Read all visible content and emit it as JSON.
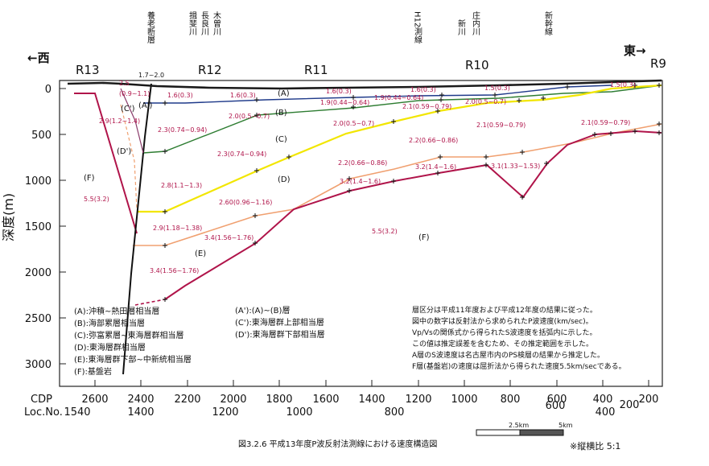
{
  "header": {
    "west": "←西",
    "east": "東→",
    "stations": [
      "R13",
      "R12",
      "R11",
      "R10",
      "R9"
    ],
    "top_labels": [
      "養老断層",
      "揖斐川",
      "長良川",
      "木曽川",
      "H12測線",
      "新川",
      "庄内川",
      "新幹線"
    ],
    "small_values": [
      "1.7~2.0",
      "2.5",
      "(0.9~1.1)"
    ]
  },
  "axis": {
    "ylabel": "深度(m)",
    "yticks": [
      "0",
      "500",
      "1000",
      "1500",
      "2000",
      "2500",
      "3000"
    ],
    "cdp_label": "CDP",
    "loc_label": "Loc.No.",
    "cdp_ticks": [
      "2600",
      "2400",
      "2200",
      "2000",
      "1800",
      "1600",
      "1400",
      "1200",
      "1000",
      "800",
      "600",
      "400",
      "200"
    ],
    "loc_ticks": [
      "1540",
      "1400",
      "1200",
      "1000",
      "800",
      "600",
      "400",
      "200"
    ]
  },
  "layers": [
    "(A)",
    "(B)",
    "(C)",
    "(D)",
    "(F)",
    "(C')",
    "(A')",
    "(D')",
    "(E)",
    "(F)"
  ],
  "velocities": {
    "a": [
      "1.6(0.3)",
      "1.6(0.3)",
      "1.6(0.3)",
      "1.6(0.3)",
      "1.5(0.3)",
      "1.5(0.3)"
    ],
    "b": [
      "2.0(0.5~0.7)",
      "1.9(0.44~0.64)",
      "1.9(0.44~0.64)",
      "2.1(0.59~0.79)",
      "2.0(0.5~0.7)"
    ],
    "c": [
      "2.3(0.74~0.94)",
      "2.0(0.5~0.7)",
      "2.1(0.59~0.79)",
      "2.1(0.59~0.79)"
    ],
    "d": [
      "2.3(0.74~0.94)",
      "2.2(0.66~0.86)",
      "2.8(1.1~1.3)",
      "2.60(0.96~1.16)",
      "2.2(0.66~0.86)"
    ],
    "e": [
      "2.9(1.18~1.38)",
      "3.4(1.56~1.76)",
      "3.2(1.4~1.6)",
      "3.2(1.4~1.6)",
      "3.1(1.33~1.53)"
    ],
    "f": [
      "5.5(3.2)",
      "5.5(3.2)",
      "3.4(1.56~1.76)",
      "2.9(1.2~1.4)"
    ]
  },
  "legend_left": [
    "(A):沖積~熱田層相当層",
    "(B):海部累層相当層",
    "(C):弥富累層~東海層群相当層",
    "(D):東海層群相当層",
    "(E):東海層群下部~中新統相当層",
    "(F):基盤岩"
  ],
  "legend_mid": [
    "(A'):(A)~(B)層",
    "(C'):東海層群上部相当層",
    "(D'):東海層群下部相当層"
  ],
  "notes": [
    "層区分は平成11年度および平成12年度の結果に従った。",
    "図中の数字は反射法から求められたP波速度(km/sec)。",
    "Vp/Vsの関係式から得られたS波速度を括弧内に示した。",
    "この値は推定誤差を含むため、その推定範囲を示した。",
    "A層のS波速度は名古屋市内のPS検層の結果から推定した。",
    "F層(基盤岩)の速度は屈折法から得られた速度5.5km/secである。"
  ],
  "caption": "図3.2.6 平成13年度P波反射法測線における速度構造図",
  "scale": [
    "2.5km",
    "5km"
  ],
  "ratio": "※縦横比 5:1",
  "colors": {
    "a": "#1f3a8a",
    "b": "#2e7d32",
    "c": "#f2e600",
    "d": "#f0a070",
    "e": "#b0144a",
    "top": "#1a1a1a"
  }
}
